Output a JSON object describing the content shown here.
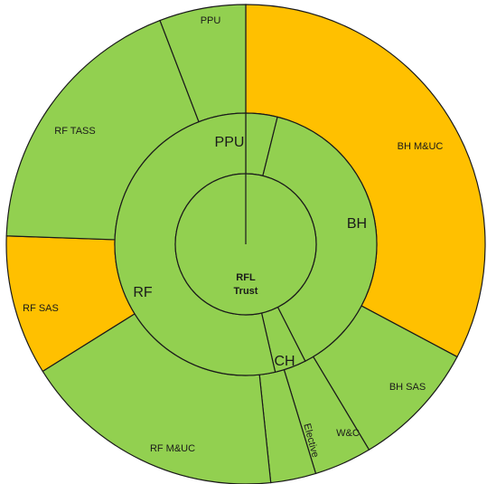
{
  "colors": {
    "green": "#92D050",
    "orange": "#FFC000",
    "stroke": "#1a1a1a",
    "background": "#FFFFFF"
  },
  "center": {
    "lines": [
      "RFL",
      "Trust"
    ]
  },
  "middle_ring": [
    {
      "label": "PPU",
      "start_deg": 0,
      "end_deg": 14,
      "color": "green"
    },
    {
      "label": "BH",
      "start_deg": 14,
      "end_deg": 153,
      "color": "green"
    },
    {
      "label": "CH",
      "start_deg": 153,
      "end_deg": 167,
      "color": "green"
    },
    {
      "label": "RF",
      "start_deg": 167,
      "end_deg": 360,
      "color": "green"
    }
  ],
  "outer_ring": [
    {
      "label": "PPU",
      "start_deg": 0,
      "end_deg": 0,
      "color": "green"
    },
    {
      "label": "BH M&UC",
      "start_deg": 0,
      "end_deg": 118,
      "color": "orange"
    },
    {
      "label": "BH SAS",
      "start_deg": 118,
      "end_deg": 149,
      "color": "green"
    },
    {
      "label": "W&C",
      "start_deg": 149,
      "end_deg": 163,
      "color": "green"
    },
    {
      "label": "Elective",
      "start_deg": 163,
      "end_deg": 174,
      "color": "green"
    },
    {
      "label": "RF M&UC",
      "start_deg": 174,
      "end_deg": 238,
      "color": "green"
    },
    {
      "label": "RF SAS",
      "start_deg": 238,
      "end_deg": 272,
      "color": "orange"
    },
    {
      "label": "RF TASS",
      "start_deg": 272,
      "end_deg": 339,
      "color": "green"
    },
    {
      "label": "PPU",
      "start_deg": 339,
      "end_deg": 360,
      "color": "green"
    }
  ]
}
